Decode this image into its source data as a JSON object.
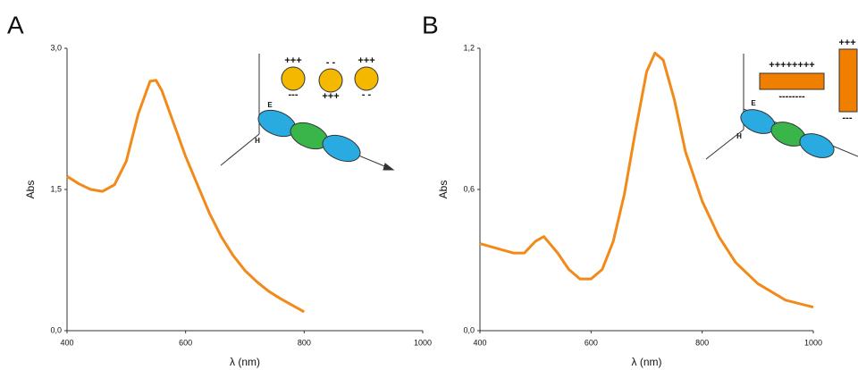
{
  "chart_data": [
    {
      "type": "line",
      "panel_label": "A",
      "ylabel": "Abs",
      "xlabel": "λ (nm)",
      "x": [
        400,
        420,
        440,
        460,
        480,
        500,
        520,
        540,
        550,
        560,
        580,
        600,
        620,
        640,
        660,
        680,
        700,
        720,
        740,
        760,
        780,
        800
      ],
      "series": [
        {
          "color": "#f28a1a",
          "values": [
            1.64,
            1.56,
            1.5,
            1.48,
            1.55,
            1.8,
            2.3,
            2.65,
            2.66,
            2.55,
            2.2,
            1.85,
            1.55,
            1.25,
            1.0,
            0.8,
            0.64,
            0.52,
            0.42,
            0.34,
            0.27,
            0.2
          ]
        }
      ],
      "xlim": [
        400,
        1000
      ],
      "xticks": [
        400,
        600,
        800,
        1000
      ],
      "ylim": [
        0,
        3
      ],
      "yticks": [
        {
          "value": 0,
          "label": "0,0"
        },
        {
          "value": 1.5,
          "label": "1,5"
        },
        {
          "value": 3,
          "label": "3,0"
        }
      ],
      "inset": {
        "charges": [
          "+++",
          "---",
          "- -",
          "+++",
          "+++",
          "- -"
        ],
        "field_labels": [
          "E",
          "H"
        ]
      }
    },
    {
      "type": "line",
      "panel_label": "B",
      "ylabel": "Abs",
      "xlabel": "λ (nm)",
      "x": [
        400,
        430,
        460,
        480,
        500,
        515,
        540,
        560,
        580,
        600,
        620,
        640,
        660,
        680,
        700,
        715,
        730,
        750,
        770,
        800,
        830,
        860,
        900,
        950,
        1000
      ],
      "series": [
        {
          "color": "#f28a1a",
          "values": [
            0.37,
            0.35,
            0.33,
            0.33,
            0.38,
            0.4,
            0.33,
            0.26,
            0.22,
            0.22,
            0.26,
            0.38,
            0.58,
            0.85,
            1.1,
            1.18,
            1.15,
            0.98,
            0.76,
            0.55,
            0.4,
            0.29,
            0.2,
            0.13,
            0.1
          ]
        }
      ],
      "xlim": [
        400,
        1000
      ],
      "xticks": [
        400,
        600,
        800,
        1000
      ],
      "ylim": [
        0,
        1.2
      ],
      "yticks": [
        {
          "value": 0,
          "label": "0,0"
        },
        {
          "value": 0.6,
          "label": "0,6"
        },
        {
          "value": 1.2,
          "label": "1,2"
        }
      ],
      "inset": {
        "charges": [
          "++++++++",
          "--------",
          "+++",
          "---"
        ],
        "field_labels": [
          "E",
          "H"
        ]
      }
    }
  ]
}
